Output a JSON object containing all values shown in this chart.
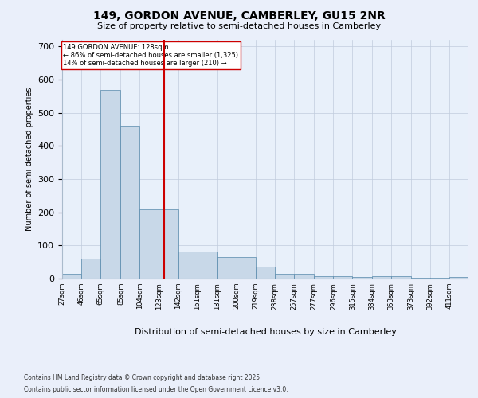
{
  "title1": "149, GORDON AVENUE, CAMBERLEY, GU15 2NR",
  "title2": "Size of property relative to semi-detached houses in Camberley",
  "xlabel": "Distribution of semi-detached houses by size in Camberley",
  "ylabel": "Number of semi-detached properties",
  "footer1": "Contains HM Land Registry data © Crown copyright and database right 2025.",
  "footer2": "Contains public sector information licensed under the Open Government Licence v3.0.",
  "annotation_line1": "149 GORDON AVENUE: 128sqm",
  "annotation_line2": "← 86% of semi-detached houses are smaller (1,325)",
  "annotation_line3": "14% of semi-detached houses are larger (210) →",
  "property_size": 128,
  "bin_labels": [
    "27sqm",
    "46sqm",
    "65sqm",
    "85sqm",
    "104sqm",
    "123sqm",
    "142sqm",
    "161sqm",
    "181sqm",
    "200sqm",
    "219sqm",
    "238sqm",
    "257sqm",
    "277sqm",
    "296sqm",
    "315sqm",
    "334sqm",
    "353sqm",
    "373sqm",
    "392sqm",
    "411sqm"
  ],
  "bin_edges": [
    27,
    46,
    65,
    85,
    104,
    123,
    142,
    161,
    181,
    200,
    219,
    238,
    257,
    277,
    296,
    315,
    334,
    353,
    373,
    392,
    411,
    430
  ],
  "bar_heights": [
    15,
    60,
    570,
    460,
    210,
    210,
    82,
    82,
    65,
    65,
    35,
    15,
    15,
    8,
    8,
    5,
    8,
    8,
    3,
    2,
    4
  ],
  "bar_color": "#c8d8e8",
  "bar_edge_color": "#5588aa",
  "bg_color": "#eaeffa",
  "plot_bg_color": "#e8f0fa",
  "red_line_color": "#cc0000",
  "ylim": [
    0,
    720
  ],
  "yticks": [
    0,
    100,
    200,
    300,
    400,
    500,
    600,
    700
  ],
  "title1_fontsize": 10,
  "title2_fontsize": 8,
  "ylabel_fontsize": 7,
  "xlabel_fontsize": 8,
  "ytick_fontsize": 8,
  "xtick_fontsize": 6,
  "annotation_fontsize": 6,
  "footer_fontsize": 5.5
}
